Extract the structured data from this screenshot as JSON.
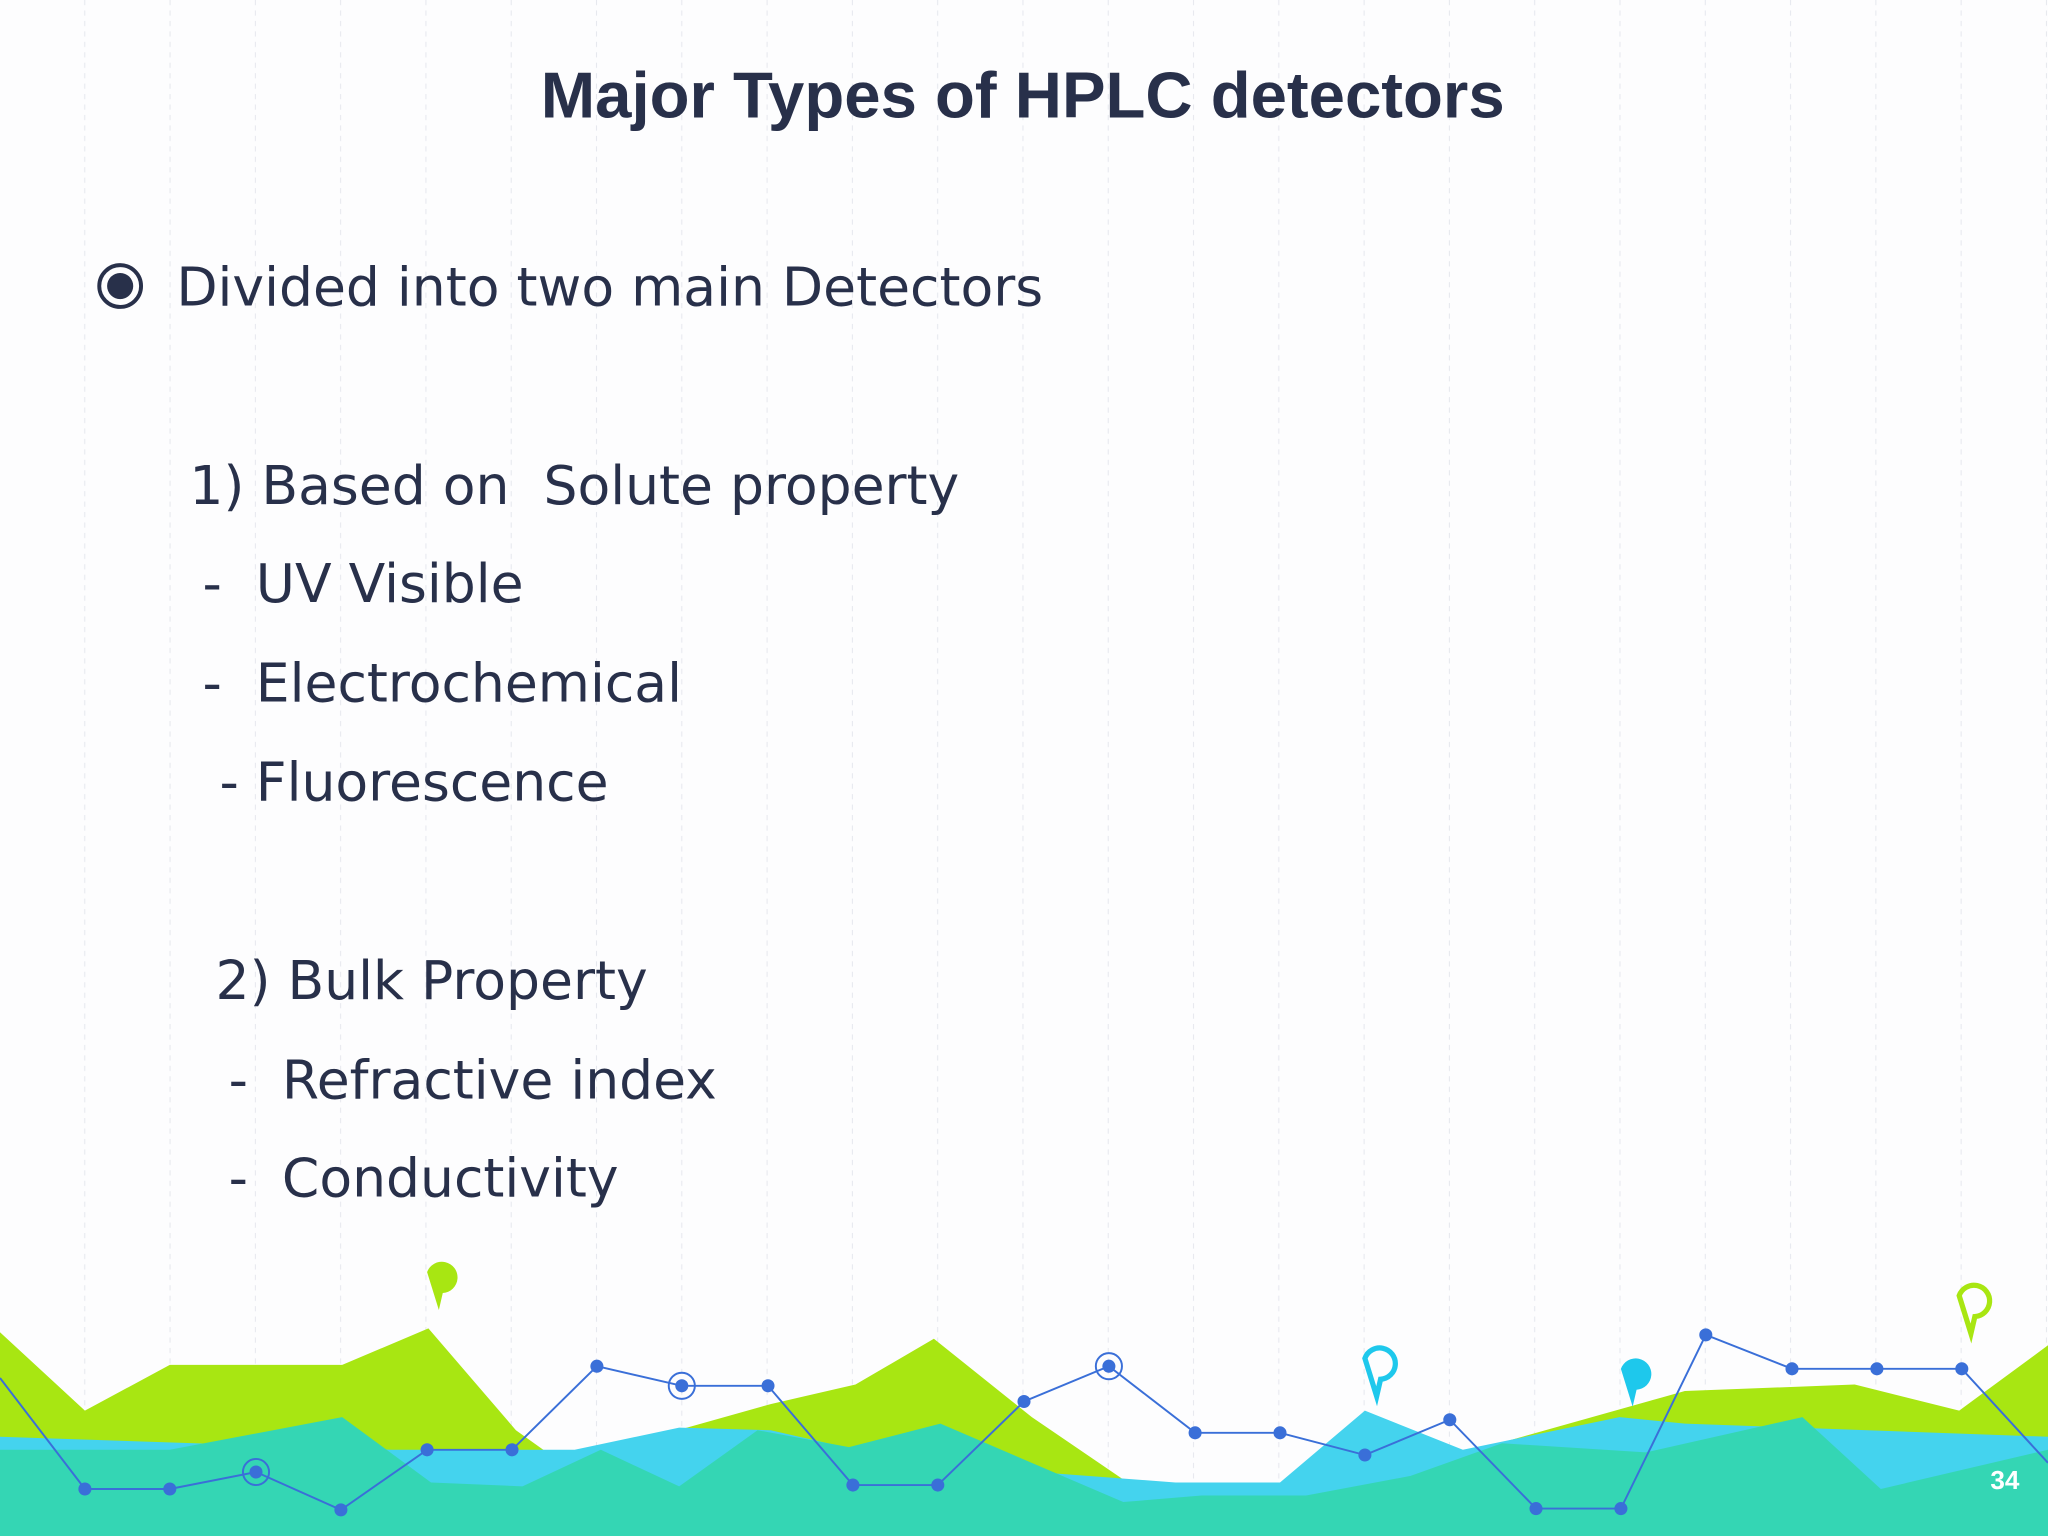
{
  "title": "Major Types of HPLC detectors",
  "bullet": "Divided into two main Detectors",
  "groups": [
    {
      "heading": "1) Based on  Solute property",
      "items": [
        "-  UV Visible",
        "-  Electrochemical",
        " - Fluorescence"
      ]
    },
    {
      "heading": "2) Bulk Property",
      "items": [
        "-  Refractive index",
        "-  Conductivity"
      ]
    }
  ],
  "page_number": "34"
}
